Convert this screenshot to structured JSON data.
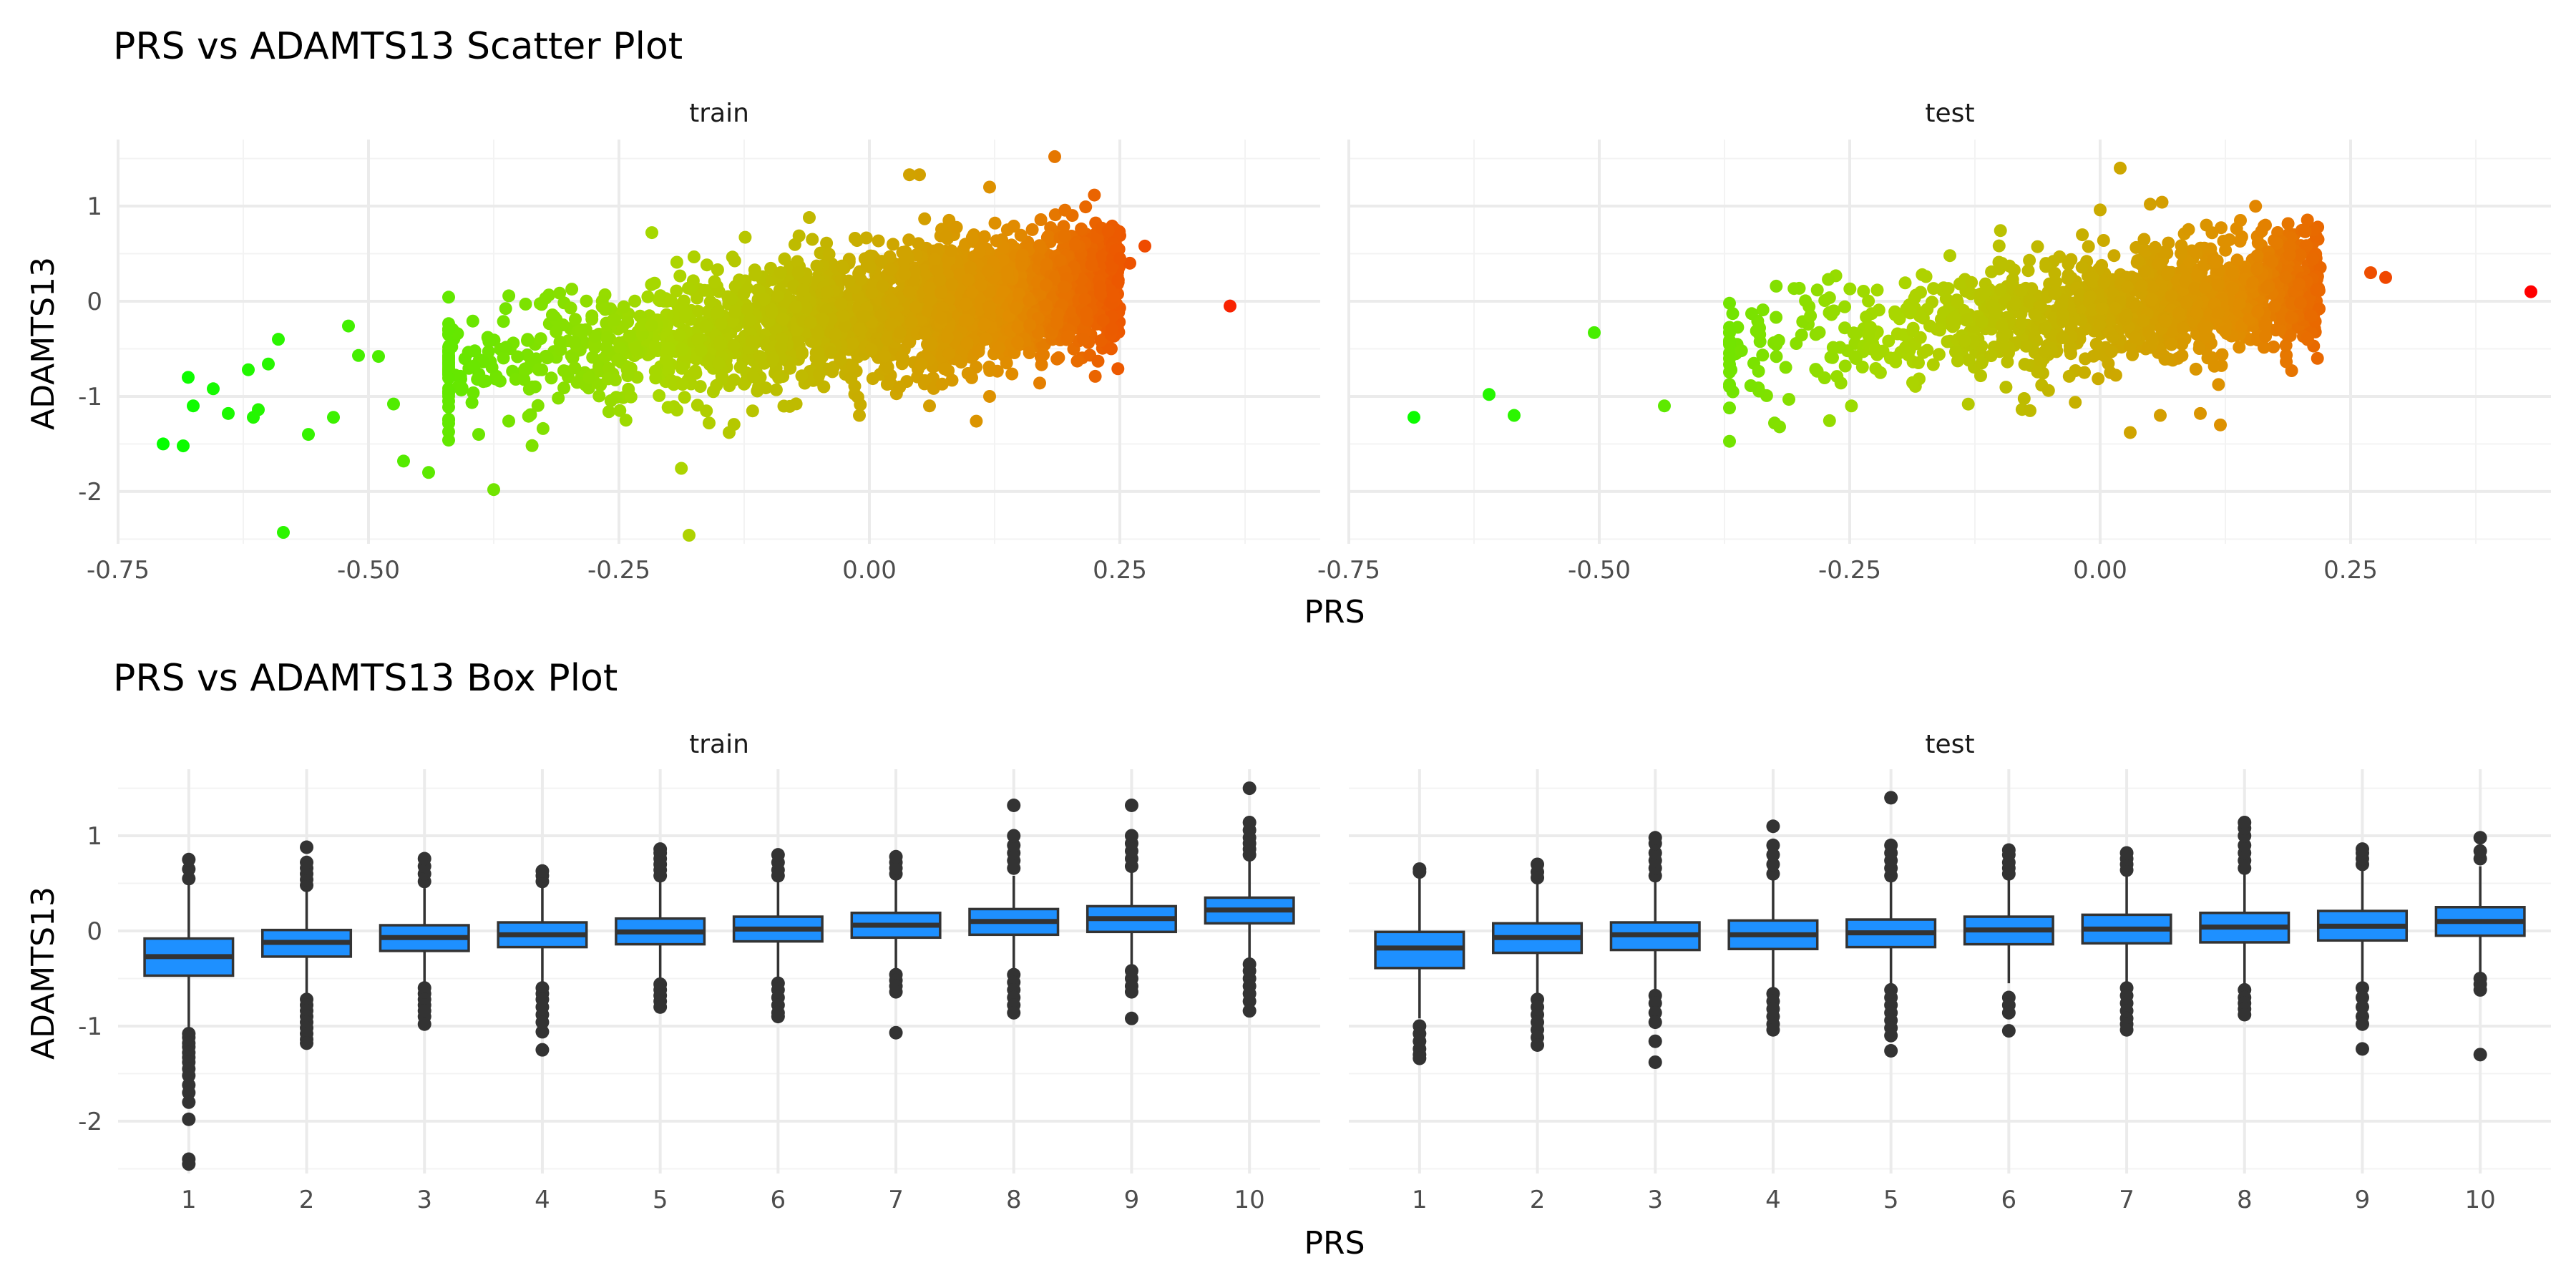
{
  "chart_data": [
    {
      "type": "scatter",
      "title": "PRS vs ADAMTS13 Scatter Plot",
      "xlabel": "PRS",
      "ylabel": "ADAMTS13",
      "xlim": [
        -0.75,
        0.45
      ],
      "ylim": [
        -2.55,
        1.7
      ],
      "x_ticks": [
        -0.75,
        -0.5,
        -0.25,
        0.0,
        0.25
      ],
      "x_tick_labels": [
        "-0.75",
        "-0.50",
        "-0.25",
        "0.00",
        "0.25"
      ],
      "y_ticks": [
        -2,
        -1,
        0,
        1
      ],
      "y_tick_labels": [
        "-2",
        "-1",
        "0",
        "1"
      ],
      "grid": true,
      "color_gradient": {
        "low": "#00ff00",
        "high": "#ff0000",
        "maps": "PRS"
      },
      "facets": [
        {
          "label": "train",
          "points": [
            [
              -0.705,
              -1.5
            ],
            [
              -0.685,
              -1.52
            ],
            [
              -0.68,
              -0.8
            ],
            [
              -0.675,
              -1.1
            ],
            [
              -0.655,
              -0.92
            ],
            [
              -0.64,
              -1.18
            ],
            [
              -0.62,
              -0.72
            ],
            [
              -0.615,
              -1.22
            ],
            [
              -0.61,
              -1.14
            ],
            [
              -0.6,
              -0.66
            ],
            [
              -0.59,
              -0.4
            ],
            [
              -0.585,
              -2.43
            ],
            [
              -0.56,
              -1.4
            ],
            [
              -0.535,
              -1.22
            ],
            [
              -0.52,
              -0.26
            ],
            [
              -0.51,
              -0.57
            ],
            [
              -0.49,
              -0.58
            ],
            [
              -0.475,
              -1.08
            ],
            [
              -0.465,
              -1.68
            ],
            [
              -0.44,
              -1.8
            ],
            [
              -0.42,
              -1.46
            ],
            [
              -0.39,
              -1.4
            ],
            [
              -0.375,
              -1.98
            ],
            [
              -0.36,
              -1.26
            ],
            [
              -0.18,
              -2.46
            ],
            [
              -0.14,
              -1.38
            ],
            [
              -0.16,
              -1.28
            ],
            [
              -0.01,
              -1.2
            ],
            [
              0.06,
              -1.1
            ],
            [
              0.12,
              -1.0
            ],
            [
              0.185,
              1.52
            ],
            [
              0.17,
              -0.86
            ],
            [
              0.36,
              -0.05
            ],
            [
              0.275,
              0.58
            ],
            [
              0.26,
              0.4
            ],
            [
              0.25,
              0.45
            ],
            [
              0.05,
              1.33
            ],
            [
              0.04,
              1.33
            ],
            [
              0.12,
              1.2
            ],
            [
              -0.06,
              0.88
            ]
          ],
          "cloud": {
            "x_center_trend": [
              -0.4,
              0.25
            ],
            "y_trend": [
              -0.65,
              0.2
            ],
            "y_spread": 0.33,
            "count": 2600
          }
        },
        {
          "label": "test",
          "points": [
            [
              -0.685,
              -1.22
            ],
            [
              -0.61,
              -0.98
            ],
            [
              -0.585,
              -1.2
            ],
            [
              -0.505,
              -0.33
            ],
            [
              -0.435,
              -1.1
            ],
            [
              -0.325,
              -1.28
            ],
            [
              -0.32,
              -1.32
            ],
            [
              -0.34,
              -0.28
            ],
            [
              0.02,
              1.4
            ],
            [
              0.05,
              1.02
            ],
            [
              0.0,
              0.96
            ],
            [
              0.27,
              0.3
            ],
            [
              0.285,
              0.25
            ],
            [
              0.43,
              0.1
            ],
            [
              0.03,
              -1.38
            ],
            [
              0.12,
              -1.3
            ],
            [
              0.1,
              -1.18
            ],
            [
              0.165,
              0.8
            ],
            [
              0.14,
              0.85
            ],
            [
              0.06,
              -1.2
            ],
            [
              -0.07,
              -1.15
            ],
            [
              -0.15,
              0.48
            ]
          ],
          "cloud": {
            "x_center_trend": [
              -0.35,
              0.22
            ],
            "y_trend": [
              -0.45,
              0.15
            ],
            "y_spread": 0.3,
            "count": 1300
          }
        }
      ]
    },
    {
      "type": "box",
      "title": "PRS vs ADAMTS13 Box Plot",
      "xlabel": "PRS",
      "ylabel": "ADAMTS13",
      "categories": [
        "1",
        "2",
        "3",
        "4",
        "5",
        "6",
        "7",
        "8",
        "9",
        "10"
      ],
      "ylim": [
        -2.55,
        1.7
      ],
      "y_ticks": [
        -2,
        -1,
        0,
        1
      ],
      "y_tick_labels": [
        "-2",
        "-1",
        "0",
        "1"
      ],
      "grid": true,
      "box_fill": "#1e90ff",
      "box_stroke": "#333333",
      "facets": [
        {
          "label": "train",
          "boxes": [
            {
              "q1": -0.47,
              "median": -0.27,
              "q3": -0.08,
              "whisker_low": -1.03,
              "whisker_high": 0.5,
              "outliers": [
                0.55,
                0.65,
                0.75,
                -1.08,
                -1.12,
                -1.18,
                -1.22,
                -1.28,
                -1.33,
                -1.38,
                -1.45,
                -1.52,
                -1.62,
                -1.7,
                -1.8,
                -1.98,
                -2.4,
                -2.45
              ]
            },
            {
              "q1": -0.27,
              "median": -0.12,
              "q3": 0.01,
              "whisker_low": -0.68,
              "whisker_high": 0.42,
              "outliers": [
                0.48,
                0.54,
                0.6,
                0.66,
                0.72,
                0.88,
                -0.72,
                -0.78,
                -0.84,
                -0.9,
                -0.96,
                -1.02,
                -1.08,
                -1.14,
                -1.18
              ]
            },
            {
              "q1": -0.21,
              "median": -0.07,
              "q3": 0.06,
              "whisker_low": -0.58,
              "whisker_high": 0.45,
              "outliers": [
                0.52,
                0.6,
                0.68,
                0.76,
                -0.6,
                -0.66,
                -0.72,
                -0.78,
                -0.84,
                -0.9,
                -0.98
              ]
            },
            {
              "q1": -0.17,
              "median": -0.04,
              "q3": 0.09,
              "whisker_low": -0.57,
              "whisker_high": 0.47,
              "outliers": [
                0.52,
                0.58,
                0.63,
                -0.6,
                -0.66,
                -0.72,
                -0.8,
                -0.88,
                -0.96,
                -1.06,
                -1.25
              ]
            },
            {
              "q1": -0.14,
              "median": -0.01,
              "q3": 0.13,
              "whisker_low": -0.52,
              "whisker_high": 0.53,
              "outliers": [
                0.58,
                0.64,
                0.7,
                0.76,
                0.82,
                0.86,
                -0.56,
                -0.62,
                -0.68,
                -0.74,
                -0.8
              ]
            },
            {
              "q1": -0.11,
              "median": 0.02,
              "q3": 0.15,
              "whisker_low": -0.5,
              "whisker_high": 0.54,
              "outliers": [
                0.58,
                0.64,
                0.72,
                0.8,
                -0.55,
                -0.62,
                -0.7,
                -0.78,
                -0.86,
                -0.9
              ]
            },
            {
              "q1": -0.07,
              "median": 0.06,
              "q3": 0.19,
              "whisker_low": -0.44,
              "whisker_high": 0.55,
              "outliers": [
                0.6,
                0.66,
                0.72,
                0.78,
                -0.46,
                -0.52,
                -0.58,
                -0.64,
                -1.07
              ]
            },
            {
              "q1": -0.04,
              "median": 0.1,
              "q3": 0.23,
              "whisker_low": -0.44,
              "whisker_high": 0.58,
              "outliers": [
                0.66,
                0.74,
                0.82,
                0.9,
                1.0,
                1.32,
                -0.46,
                -0.54,
                -0.62,
                -0.7,
                -0.78,
                -0.86
              ]
            },
            {
              "q1": -0.01,
              "median": 0.13,
              "q3": 0.26,
              "whisker_low": -0.39,
              "whisker_high": 0.62,
              "outliers": [
                0.68,
                0.76,
                0.84,
                0.92,
                1.0,
                1.32,
                -0.42,
                -0.5,
                -0.58,
                -0.64,
                -0.92
              ]
            },
            {
              "q1": 0.08,
              "median": 0.22,
              "q3": 0.35,
              "whisker_low": -0.32,
              "whisker_high": 0.74,
              "outliers": [
                0.8,
                0.86,
                0.92,
                0.98,
                1.06,
                1.14,
                1.5,
                -0.35,
                -0.42,
                -0.5,
                -0.58,
                -0.66,
                -0.74,
                -0.84
              ]
            }
          ]
        },
        {
          "label": "test",
          "boxes": [
            {
              "q1": -0.39,
              "median": -0.18,
              "q3": -0.01,
              "whisker_low": -0.92,
              "whisker_high": 0.57,
              "outliers": [
                0.62,
                0.65,
                -1.0,
                -1.08,
                -1.16,
                -1.24,
                -1.3,
                -1.34
              ]
            },
            {
              "q1": -0.23,
              "median": -0.07,
              "q3": 0.08,
              "whisker_low": -0.68,
              "whisker_high": 0.52,
              "outliers": [
                0.56,
                0.62,
                0.7,
                -0.72,
                -0.8,
                -0.88,
                -0.96,
                -1.04,
                -1.12,
                -1.2
              ]
            },
            {
              "q1": -0.2,
              "median": -0.04,
              "q3": 0.09,
              "whisker_low": -0.63,
              "whisker_high": 0.52,
              "outliers": [
                0.58,
                0.66,
                0.74,
                0.82,
                0.92,
                0.98,
                -0.68,
                -0.76,
                -0.86,
                -0.96,
                -1.16,
                -1.38
              ]
            },
            {
              "q1": -0.19,
              "median": -0.04,
              "q3": 0.11,
              "whisker_low": -0.62,
              "whisker_high": 0.54,
              "outliers": [
                0.6,
                0.7,
                0.8,
                0.9,
                1.1,
                -0.66,
                -0.74,
                -0.82,
                -0.9,
                -0.98,
                -1.04
              ]
            },
            {
              "q1": -0.17,
              "median": -0.02,
              "q3": 0.12,
              "whisker_low": -0.6,
              "whisker_high": 0.52,
              "outliers": [
                0.58,
                0.66,
                0.74,
                0.82,
                0.9,
                1.4,
                -0.62,
                -0.7,
                -0.78,
                -0.86,
                -0.94,
                -1.02,
                -1.1,
                -1.26
              ]
            },
            {
              "q1": -0.14,
              "median": 0.01,
              "q3": 0.15,
              "whisker_low": -0.55,
              "whisker_high": 0.55,
              "outliers": [
                0.6,
                0.66,
                0.72,
                0.8,
                0.85,
                -0.7,
                -0.78,
                -0.86,
                -1.05
              ]
            },
            {
              "q1": -0.13,
              "median": 0.02,
              "q3": 0.17,
              "whisker_low": -0.55,
              "whisker_high": 0.58,
              "outliers": [
                0.64,
                0.7,
                0.76,
                0.82,
                -0.6,
                -0.68,
                -0.76,
                -0.84,
                -0.92,
                -0.98,
                -1.04
              ]
            },
            {
              "q1": -0.12,
              "median": 0.04,
              "q3": 0.19,
              "whisker_low": -0.56,
              "whisker_high": 0.6,
              "outliers": [
                0.66,
                0.74,
                0.82,
                0.9,
                1.0,
                1.08,
                1.14,
                -0.62,
                -0.7,
                -0.76,
                -0.82,
                -0.88
              ]
            },
            {
              "q1": -0.1,
              "median": 0.05,
              "q3": 0.21,
              "whisker_low": -0.53,
              "whisker_high": 0.64,
              "outliers": [
                0.7,
                0.76,
                0.82,
                0.86,
                -0.6,
                -0.7,
                -0.8,
                -0.9,
                -0.98,
                -1.24
              ]
            },
            {
              "q1": -0.05,
              "median": 0.1,
              "q3": 0.25,
              "whisker_low": -0.46,
              "whisker_high": 0.68,
              "outliers": [
                0.76,
                0.84,
                0.98,
                -0.5,
                -0.56,
                -0.62,
                -1.3
              ]
            }
          ]
        }
      ]
    }
  ]
}
